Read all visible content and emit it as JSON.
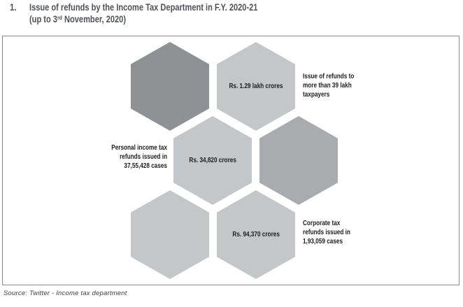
{
  "title": {
    "number": "1.",
    "line1": "Issue of refunds by the Income Tax Department in F.Y. 2020-21",
    "line2_prefix": "(up to 3",
    "line2_sup": "rd",
    "line2_suffix": " November, 2020)"
  },
  "diagram": {
    "hexagons": [
      {
        "id": "top-left",
        "label": "",
        "color": "#8f9194"
      },
      {
        "id": "top-center",
        "label": "Rs. 1.29 lakh crores",
        "color": "#c4c6c8"
      },
      {
        "id": "middle-center",
        "label": "Rs. 34,820 crores",
        "color": "#c4c6c8"
      },
      {
        "id": "middle-right",
        "label": "",
        "color": "#a9abae"
      },
      {
        "id": "bottom-left",
        "label": "",
        "color": "#c4c6c8"
      },
      {
        "id": "bottom-center",
        "label": "Rs. 94,370 crores",
        "color": "#c4c6c8"
      }
    ],
    "annotations": [
      {
        "id": "taxpayers",
        "text": "Issue of refunds to\nmore than 39 lakh\ntaxpayers"
      },
      {
        "id": "personal-income-tax",
        "text": "Personal income tax\nrefunds issued in\n37,55,428 cases"
      },
      {
        "id": "corporate-tax",
        "text": "Corporate tax\nrefunds issued in\n1,93,059 cases"
      }
    ]
  },
  "source": "Source: Twitter - Income tax department"
}
